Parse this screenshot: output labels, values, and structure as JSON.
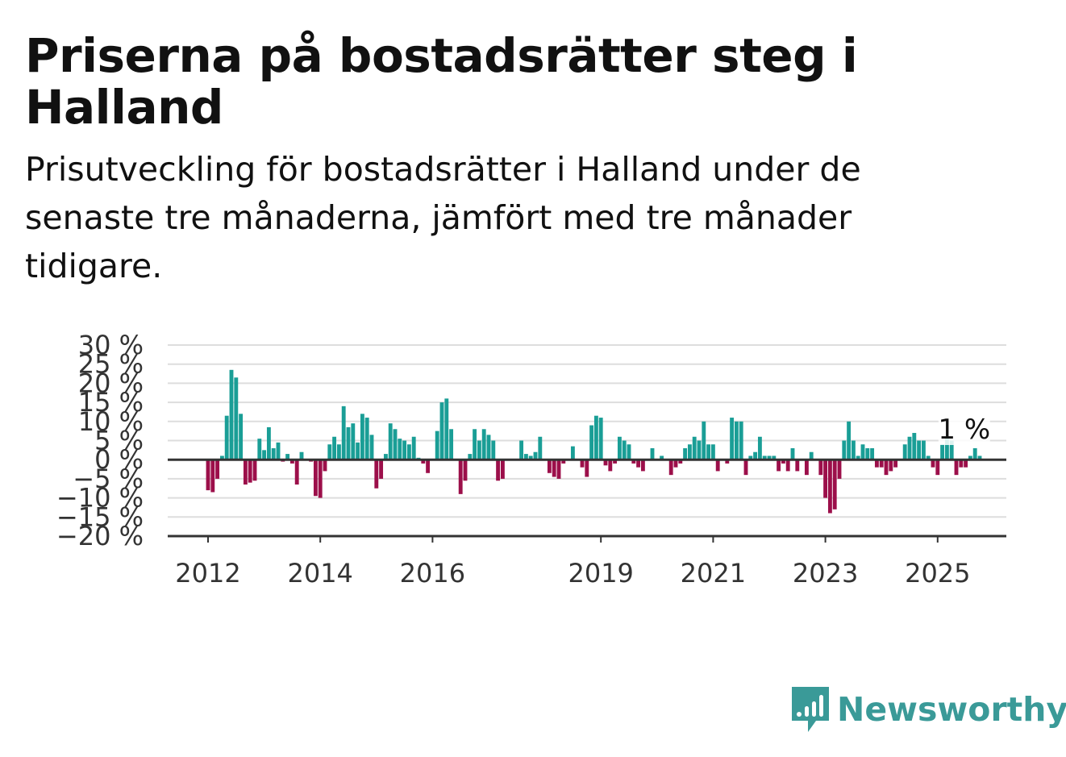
{
  "header": {
    "title": "Priserna på bostadsrätter steg i Halland",
    "subtitle": "Prisutveckling för bostadsrätter i Halland under de senaste tre månaderna, jämfört med tre månader tidigare."
  },
  "logo": {
    "icon": "newsworthy-chart-icon",
    "text": "Newsworthy",
    "color": "#3a9a98"
  },
  "chart_data": {
    "type": "bar",
    "title": "",
    "xlabel": "",
    "ylabel": "",
    "ylim": [
      -20,
      30
    ],
    "yticks": [
      30,
      25,
      20,
      15,
      10,
      5,
      0,
      -5,
      -10,
      -15,
      -20
    ],
    "ytick_labels": [
      "30 %",
      "25 %",
      "20 %",
      "15 %",
      "10 %",
      "5 %",
      "0 %",
      "−5 %",
      "−10 %",
      "−15 %",
      "−20 %"
    ],
    "xticks": [
      {
        "label": "2012",
        "month": "2012-01"
      },
      {
        "label": "2014",
        "month": "2014-01"
      },
      {
        "label": "2016",
        "month": "2016-01"
      },
      {
        "label": "2019",
        "month": "2019-01"
      },
      {
        "label": "2021",
        "month": "2021-01"
      },
      {
        "label": "2023",
        "month": "2023-01"
      },
      {
        "label": "2025",
        "month": "2025-01"
      }
    ],
    "start_month": "2012-01",
    "grid": true,
    "colors": {
      "positive": "#1a9e96",
      "negative": "#9c0f4a",
      "grid": "#dddddd",
      "axis": "#333333"
    },
    "annotation": {
      "text": "1 %",
      "month": "2025-06"
    },
    "values": [
      -8,
      -8.5,
      -5,
      1,
      11.5,
      23.5,
      21.5,
      12,
      -6.5,
      -6,
      -5.5,
      5.5,
      2.5,
      8.5,
      3,
      4.5,
      -0.5,
      1.5,
      -1,
      -6.5,
      2,
      0,
      -0.5,
      -9.5,
      -10,
      -3,
      4,
      6,
      4,
      14,
      8.5,
      9.5,
      4.5,
      12,
      11,
      6.5,
      -7.5,
      -5,
      1.5,
      9.5,
      8,
      5.5,
      5,
      4,
      6,
      0.5,
      -1,
      -3.5,
      0,
      7.5,
      15,
      16,
      8,
      0,
      -9,
      -5.5,
      1.5,
      8,
      5,
      8,
      6.5,
      5,
      -5.5,
      -5,
      0,
      0,
      0,
      5,
      1.5,
      1,
      2,
      6,
      0,
      -3.5,
      -4.5,
      -5,
      -1,
      0,
      3.5,
      0,
      -2,
      -4.5,
      9,
      11.5,
      11,
      -1.5,
      -3,
      -1,
      6,
      5,
      4,
      -1,
      -2,
      -3,
      0,
      3,
      0,
      1,
      0,
      -4,
      -2,
      -1,
      3,
      4,
      6,
      5,
      10,
      4,
      4,
      -3,
      0,
      -1,
      11,
      10,
      10,
      -4,
      1,
      2,
      6,
      1,
      1,
      1,
      -3,
      -1,
      -3,
      3,
      -3,
      0,
      -4,
      2,
      0,
      -4,
      -10,
      -14,
      -13,
      -5,
      5,
      10,
      5,
      1,
      4,
      3,
      3,
      -2,
      -2,
      -4,
      -3,
      -2,
      0,
      4,
      6,
      7,
      5,
      5,
      1,
      -2,
      -4,
      4,
      6,
      5,
      -4,
      -2,
      -2,
      1,
      3,
      1
    ]
  }
}
